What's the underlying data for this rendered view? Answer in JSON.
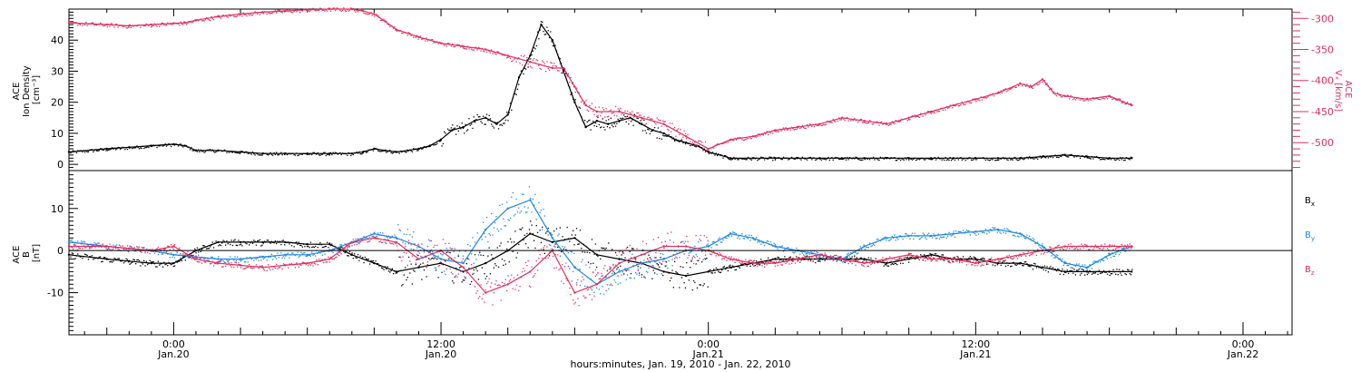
{
  "colors": {
    "black": "#000000",
    "pink": "#e0305e",
    "blue": "#1e88e5",
    "axis": "#000000"
  },
  "xaxis": {
    "title": "hours:minutes, Jan. 19, 2010 - Jan. 22, 2010",
    "range_hours": [
      -4.7,
      50.2
    ],
    "ticks": [
      {
        "hour": 0,
        "time": "0:00",
        "date": "Jan.20"
      },
      {
        "hour": 12,
        "time": "12:00",
        "date": "Jan.20"
      },
      {
        "hour": 24,
        "time": "0:00",
        "date": "Jan.21"
      },
      {
        "hour": 36,
        "time": "12:00",
        "date": "Jan.21"
      },
      {
        "hour": 48,
        "time": "0:00",
        "date": "Jan.22"
      }
    ]
  },
  "chart_data": [
    {
      "type": "scatter",
      "panel": "top",
      "left_axis": {
        "label": [
          "ACE",
          "Ion Density",
          "[cm⁻³]"
        ],
        "ylim": [
          -2,
          50
        ],
        "ticks": [
          0,
          10,
          20,
          30,
          40
        ]
      },
      "right_axis": {
        "label": [
          "ACE",
          "Vₓ [km/s]"
        ],
        "ylim": [
          -545,
          -285
        ],
        "ticks": [
          -300,
          -350,
          -400,
          -450,
          -500
        ],
        "tick_labels": [
          "-300",
          "-350",
          "-400",
          "-450",
          "-500"
        ]
      },
      "series": [
        {
          "color": "black",
          "axis": "left",
          "x": [
            -4.7,
            -3,
            -2,
            -1,
            0,
            0.5,
            1,
            2,
            3,
            4,
            5,
            6,
            7,
            8,
            8.5,
            9,
            9.5,
            10,
            10.5,
            11,
            11.5,
            12,
            12.5,
            13,
            13.5,
            14,
            14.5,
            15,
            15.5,
            16,
            16.5,
            17,
            17.5,
            18,
            18.5,
            19,
            19.5,
            20,
            20.5,
            21,
            21.5,
            22,
            22.5,
            23,
            23.5,
            24,
            25,
            26,
            27,
            28,
            29,
            30,
            31,
            32,
            33,
            34,
            35,
            36,
            37,
            38,
            39,
            40,
            41,
            42,
            43
          ],
          "y": [
            4,
            5,
            5.5,
            6,
            6.5,
            6,
            4.5,
            4.5,
            4,
            3.5,
            3.5,
            3.5,
            3.5,
            3.5,
            4,
            5,
            4.5,
            4,
            4.5,
            5,
            6,
            8,
            11,
            12,
            14,
            15,
            13,
            16,
            28,
            35,
            45,
            40,
            30,
            20,
            12,
            14,
            13,
            14,
            15,
            13,
            11,
            10,
            8,
            7,
            6,
            4,
            2,
            2,
            2,
            2,
            2,
            2,
            2,
            2,
            2,
            2,
            2,
            2,
            2,
            2,
            2.5,
            3,
            2.5,
            2,
            2
          ]
        },
        {
          "color": "pink",
          "axis": "right",
          "x": [
            -4.7,
            -3,
            -2,
            -1,
            0,
            0.5,
            1,
            2,
            3,
            4,
            5,
            6,
            7,
            8,
            8.5,
            9,
            9.5,
            10,
            11,
            12,
            13,
            14,
            15,
            16,
            17,
            17.5,
            18,
            18.5,
            19,
            20,
            21,
            22,
            23,
            24,
            25,
            26,
            27,
            28,
            29,
            30,
            31,
            32,
            33,
            34,
            35,
            36,
            37,
            38,
            38.5,
            39,
            39.5,
            40,
            41,
            42,
            43
          ],
          "y": [
            -307,
            -310,
            -312,
            -310,
            -308,
            -307,
            -303,
            -297,
            -293,
            -290,
            -288,
            -286,
            -285,
            -285,
            -288,
            -293,
            -305,
            -318,
            -330,
            -340,
            -345,
            -350,
            -360,
            -370,
            -380,
            -380,
            -410,
            -440,
            -450,
            -450,
            -460,
            -470,
            -490,
            -510,
            -495,
            -490,
            -480,
            -475,
            -470,
            -460,
            -465,
            -470,
            -460,
            -450,
            -440,
            -430,
            -420,
            -405,
            -410,
            -398,
            -420,
            -425,
            -430,
            -425,
            -440
          ]
        }
      ]
    },
    {
      "type": "scatter",
      "panel": "bottom",
      "left_axis": {
        "label": [
          "ACE",
          "B",
          "[nT]"
        ],
        "ylim": [
          -20,
          19
        ],
        "ticks": [
          -10,
          0,
          10
        ]
      },
      "zero_line": true,
      "series": [
        {
          "name": "Bx",
          "color": "black",
          "x": [
            -4.7,
            -3,
            -2,
            -1,
            0,
            1,
            2,
            3,
            4,
            5,
            6,
            7,
            8,
            9,
            10,
            11,
            12,
            13,
            14,
            15,
            16,
            17,
            18,
            19,
            20,
            21,
            22,
            23,
            24,
            25,
            26,
            27,
            28,
            29,
            30,
            31,
            32,
            33,
            34,
            35,
            36,
            37,
            38,
            39,
            40,
            41,
            42,
            43
          ],
          "y": [
            -1,
            -2,
            -2.5,
            -3,
            -3,
            0,
            2,
            2,
            2,
            2,
            1.5,
            1.5,
            -1,
            -3,
            -5,
            -4,
            -3,
            -5,
            -3,
            0,
            4,
            2,
            3,
            -1,
            -2,
            -3,
            -5,
            -6,
            -5,
            -4,
            -3,
            -2,
            -2,
            -2,
            -2,
            -2,
            -3,
            -2,
            -1,
            -2,
            -2,
            -3,
            -3,
            -4,
            -5,
            -5,
            -5,
            -5
          ]
        },
        {
          "name": "By",
          "color": "blue",
          "x": [
            -4.7,
            -3,
            -2,
            -1,
            0,
            1,
            2,
            3,
            4,
            5,
            6,
            7,
            8,
            9,
            10,
            11,
            12,
            13,
            14,
            15,
            16,
            17,
            18,
            19,
            20,
            21,
            22,
            23,
            24,
            25,
            26,
            27,
            28,
            29,
            30,
            31,
            32,
            33,
            34,
            35,
            36,
            37,
            38,
            39,
            40,
            41,
            42,
            43
          ],
          "y": [
            2,
            1,
            0.5,
            0,
            -1,
            -1.5,
            -2,
            -2,
            -1.5,
            -1,
            -1,
            0,
            2,
            4,
            3,
            1,
            -2,
            -3,
            5,
            10,
            12,
            3,
            -4,
            -8,
            -5,
            -3,
            -2,
            0,
            1,
            4,
            3,
            1,
            0,
            -1,
            -2,
            1,
            3,
            3.5,
            3.5,
            4,
            4.5,
            5,
            4,
            1,
            -3,
            -4,
            -1,
            1
          ]
        },
        {
          "name": "Bz",
          "color": "pink",
          "x": [
            -4.7,
            -3,
            -2,
            -1,
            0,
            1,
            2,
            3,
            4,
            5,
            6,
            7,
            8,
            9,
            10,
            11,
            12,
            13,
            14,
            15,
            16,
            17,
            18,
            19,
            20,
            21,
            22,
            23,
            24,
            25,
            26,
            27,
            28,
            29,
            30,
            31,
            32,
            33,
            34,
            35,
            36,
            37,
            38,
            39,
            40,
            41,
            42,
            43
          ],
          "y": [
            1,
            1,
            0.5,
            0,
            1,
            -2,
            -3,
            -3.5,
            -4,
            -3.5,
            -3,
            -2,
            2,
            3,
            2,
            -2,
            0,
            -4,
            -10,
            -8,
            -5,
            0,
            -10,
            -8,
            -3,
            -1,
            1,
            1,
            0,
            -2,
            -3,
            -3,
            -2,
            -1,
            -2,
            -3,
            -2,
            -1,
            -2,
            -2,
            -3,
            -2,
            -1,
            0,
            1,
            1,
            1,
            1
          ]
        }
      ]
    }
  ],
  "legend": {
    "bx": "B",
    "bx_sub": "x",
    "by": "B",
    "by_sub": "y",
    "bz": "B",
    "bz_sub": "z"
  }
}
